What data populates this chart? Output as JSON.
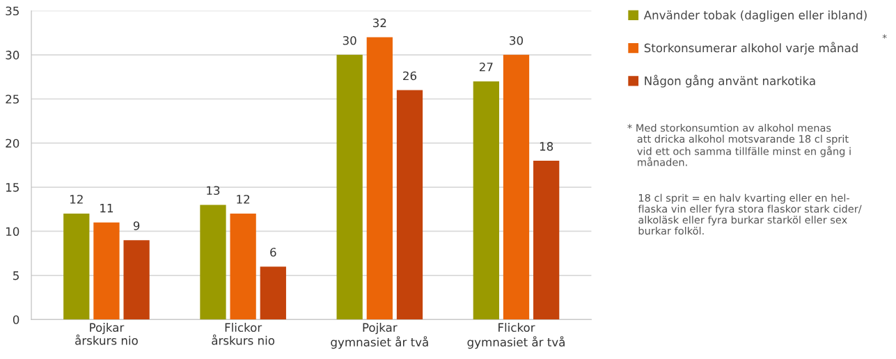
{
  "chart_data": {
    "type": "bar",
    "categories": [
      "Pojkar\nårskurs nio",
      "Flickor\nårskurs nio",
      "Pojkar\ngymnasiet år två",
      "Flickor\ngymnasiet år två"
    ],
    "series": [
      {
        "name": "Använder tobak (dagligen eller ibland)",
        "color": "#9a9a00",
        "values": [
          12,
          13,
          30,
          27
        ]
      },
      {
        "name": "Storkonsumerar alkohol varje månad",
        "color": "#eb6508",
        "values": [
          11,
          12,
          32,
          30
        ]
      },
      {
        "name": "Någon gång använt narkotika",
        "color": "#c4430b",
        "values": [
          9,
          6,
          26,
          18
        ]
      }
    ],
    "ylim": [
      0,
      35
    ],
    "yticks": [
      0,
      5,
      10,
      15,
      20,
      25,
      30,
      35
    ],
    "grid": "y",
    "legend": "right",
    "data_labels": true,
    "annotations": [
      "*",
      "* Med storkonsumtion av alkohol menas\n   att dricka alkohol motsvarande 18 cl sprit\n   vid ett och samma tillfälle minst en gång i\n   månaden.",
      "18 cl sprit = en halv kvarting eller en hel-\nflaska vin eller fyra stora flaskor stark cider/\nalkoläsk eller fyra burkar starköl eller sex\nburkar folköl."
    ]
  }
}
